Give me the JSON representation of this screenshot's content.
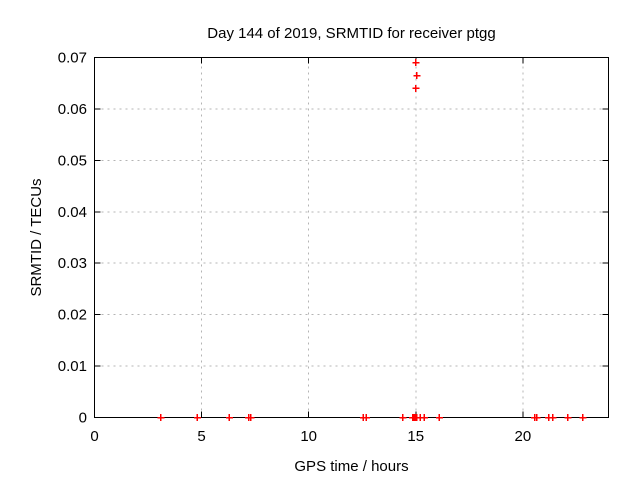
{
  "window": {
    "background": "#ffffff"
  },
  "chart_data": {
    "type": "scatter",
    "title": "Day 144 of 2019, SRMTID for receiver ptgg",
    "xlabel": "GPS time / hours",
    "ylabel": "SRMTID / TECUs",
    "xlim": [
      0,
      24
    ],
    "ylim": [
      0,
      0.07
    ],
    "xticks": [
      0,
      5,
      10,
      15,
      20
    ],
    "xtick_labels": [
      "0",
      "5",
      "10",
      "15",
      "20"
    ],
    "yticks": [
      0,
      0.01,
      0.02,
      0.03,
      0.04,
      0.05,
      0.06,
      0.07
    ],
    "ytick_labels": [
      "0",
      "0.01",
      "0.02",
      "0.03",
      "0.04",
      "0.05",
      "0.06",
      "0.07"
    ],
    "grid": true,
    "legend": "none",
    "marker": "plus",
    "colors": {
      "marker": "#ff0000",
      "grid": "#b4b4b4",
      "axis": "#000000",
      "text": "#000000",
      "background": "#ffffff"
    },
    "series": [
      {
        "name": "SRMTID",
        "points": [
          [
            3.1,
            0
          ],
          [
            4.8,
            0
          ],
          [
            6.3,
            0
          ],
          [
            7.2,
            0
          ],
          [
            7.3,
            0
          ],
          [
            12.55,
            0
          ],
          [
            12.7,
            0
          ],
          [
            14.4,
            0
          ],
          [
            14.85,
            0
          ],
          [
            14.9,
            0
          ],
          [
            14.95,
            0
          ],
          [
            15.0,
            0
          ],
          [
            15.05,
            0
          ],
          [
            15.2,
            0
          ],
          [
            15.4,
            0
          ],
          [
            16.1,
            0
          ],
          [
            20.55,
            0
          ],
          [
            20.65,
            0
          ],
          [
            21.2,
            0
          ],
          [
            21.4,
            0
          ],
          [
            22.1,
            0
          ],
          [
            22.8,
            0
          ],
          [
            15.0,
            0.069
          ],
          [
            15.05,
            0.0665
          ],
          [
            15.0,
            0.064
          ]
        ]
      }
    ]
  }
}
